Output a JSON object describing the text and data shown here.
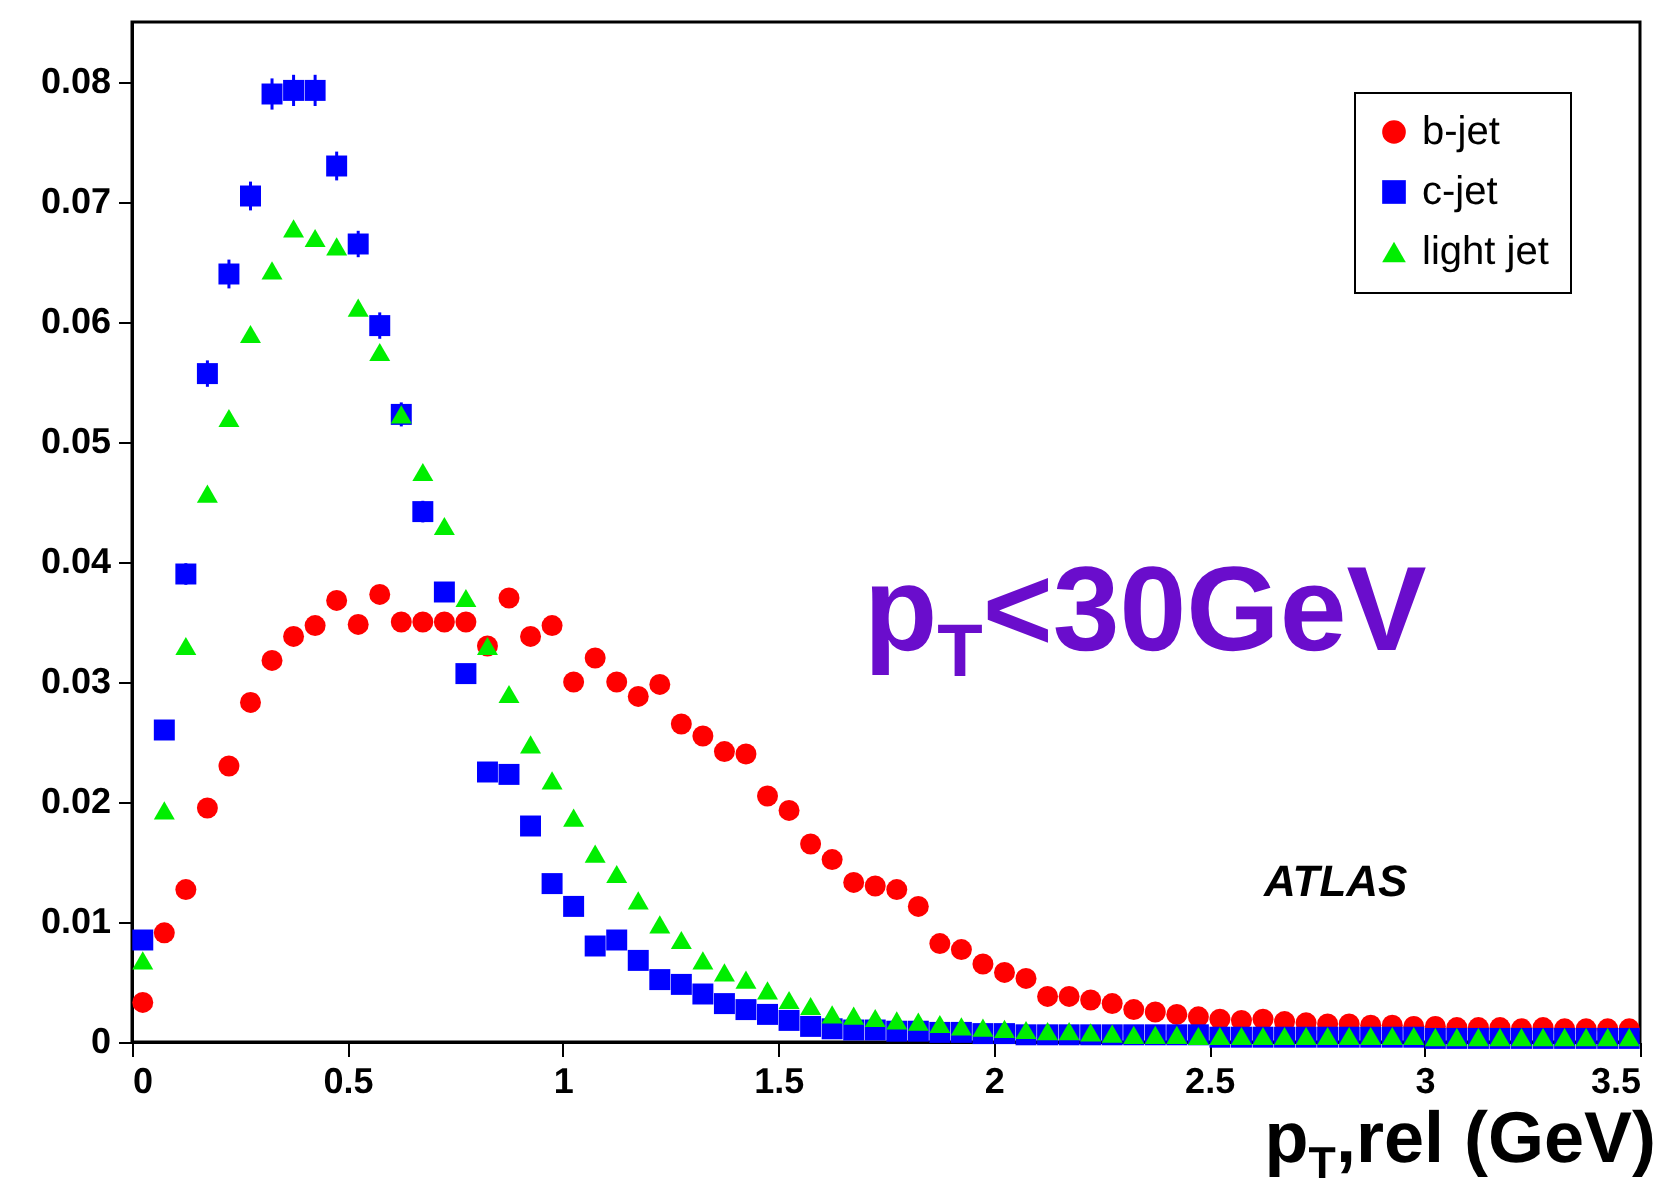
{
  "chart_data": {
    "type": "scatter",
    "xlabel": "p$_{T}$,rel (GeV)",
    "annotations": [
      "p$_{T}$<30GeV",
      "ATLAS"
    ],
    "x": [
      0.025,
      0.075,
      0.125,
      0.175,
      0.225,
      0.275,
      0.325,
      0.375,
      0.425,
      0.475,
      0.525,
      0.575,
      0.625,
      0.675,
      0.725,
      0.775,
      0.825,
      0.875,
      0.925,
      0.975,
      1.025,
      1.075,
      1.125,
      1.175,
      1.225,
      1.275,
      1.325,
      1.375,
      1.425,
      1.475,
      1.525,
      1.575,
      1.625,
      1.675,
      1.725,
      1.775,
      1.825,
      1.875,
      1.925,
      1.975,
      2.025,
      2.075,
      2.125,
      2.175,
      2.225,
      2.275,
      2.325,
      2.375,
      2.425,
      2.475,
      2.525,
      2.575,
      2.625,
      2.675,
      2.725,
      2.775,
      2.825,
      2.875,
      2.925,
      2.975,
      3.025,
      3.075,
      3.125,
      3.175,
      3.225,
      3.275,
      3.325,
      3.375,
      3.425,
      3.475
    ],
    "series": [
      {
        "name": "b-jet",
        "color": "#ff0000",
        "marker": "circle",
        "values": [
          0.0033,
          0.0091,
          0.0127,
          0.0195,
          0.023,
          0.0283,
          0.0318,
          0.0338,
          0.0347,
          0.0368,
          0.0348,
          0.0373,
          0.035,
          0.035,
          0.035,
          0.035,
          0.033,
          0.037,
          0.0338,
          0.0347,
          0.03,
          0.032,
          0.03,
          0.0288,
          0.0298,
          0.0265,
          0.0255,
          0.0242,
          0.024,
          0.0205,
          0.0193,
          0.0165,
          0.0152,
          0.0133,
          0.013,
          0.0127,
          0.0113,
          0.0082,
          0.0077,
          0.0065,
          0.0058,
          0.0053,
          0.0038,
          0.0038,
          0.0035,
          0.0032,
          0.0027,
          0.0025,
          0.0023,
          0.0021,
          0.0019,
          0.0018,
          0.0019,
          0.0017,
          0.0016,
          0.0015,
          0.0015,
          0.0014,
          0.0014,
          0.0013,
          0.0013,
          0.0012,
          0.0012,
          0.0012,
          0.0011,
          0.0012,
          0.0011,
          0.0011,
          0.0011,
          0.0011
        ]
      },
      {
        "name": "c-jet",
        "color": "#0000ff",
        "marker": "square",
        "values": [
          0.0085,
          0.026,
          0.039,
          0.0557,
          0.064,
          0.0705,
          0.079,
          0.0793,
          0.0793,
          0.073,
          0.0665,
          0.0597,
          0.0523,
          0.0442,
          0.0375,
          0.0307,
          0.0225,
          0.0223,
          0.018,
          0.0132,
          0.0113,
          0.008,
          0.0085,
          0.0068,
          0.0052,
          0.0048,
          0.004,
          0.0032,
          0.0027,
          0.0023,
          0.0018,
          0.0013,
          0.0011,
          0.001,
          0.001,
          0.0009,
          0.0009,
          0.0008,
          0.0008,
          0.0007,
          0.0007,
          0.0006,
          0.0006,
          0.0006,
          0.0006,
          0.0006,
          0.0006,
          0.0006,
          0.0006,
          0.0006,
          0.0004,
          0.0004,
          0.0004,
          0.0004,
          0.0004,
          0.0004,
          0.0004,
          0.0004,
          0.0004,
          0.0004,
          0.0003,
          0.0003,
          0.0003,
          0.0003,
          0.0003,
          0.0003,
          0.0003,
          0.0003,
          0.0003,
          0.0003
        ],
        "errors": [
          null,
          0.0008,
          0.0009,
          0.0011,
          0.0012,
          0.0012,
          0.0013,
          0.0013,
          0.0013,
          0.0012,
          0.0011,
          0.0011,
          0.001,
          0.0009,
          0.0008,
          null,
          null,
          null,
          null,
          null,
          null,
          null,
          null,
          null,
          null,
          null,
          null,
          null,
          null,
          null,
          null,
          null,
          null,
          null,
          null,
          null,
          null,
          null,
          null,
          null,
          null,
          null,
          null,
          null,
          null,
          null,
          null,
          null,
          null,
          null,
          null,
          null,
          null,
          null,
          null,
          null,
          null,
          null,
          null,
          null,
          null,
          null,
          null,
          null,
          null,
          null,
          null,
          null,
          null,
          null
        ]
      },
      {
        "name": "light jet",
        "color": "#00ee00",
        "marker": "triangle",
        "values": [
          0.0068,
          0.0193,
          0.033,
          0.0457,
          0.052,
          0.059,
          0.0643,
          0.0678,
          0.067,
          0.0663,
          0.0612,
          0.0575,
          0.0523,
          0.0475,
          0.043,
          0.037,
          0.033,
          0.029,
          0.0248,
          0.0218,
          0.0187,
          0.0157,
          0.014,
          0.0118,
          0.0098,
          0.0085,
          0.0068,
          0.0058,
          0.0052,
          0.0043,
          0.0035,
          0.003,
          0.0023,
          0.0022,
          0.002,
          0.0018,
          0.0017,
          0.0015,
          0.0013,
          0.0012,
          0.0011,
          0.001,
          0.0009,
          0.0009,
          0.0008,
          0.0007,
          0.0006,
          0.0006,
          0.0006,
          0.0005,
          0.0005,
          0.0005,
          0.0005,
          0.0005,
          0.0005,
          0.0005,
          0.0005,
          0.0005,
          0.0005,
          0.0005,
          0.0004,
          0.0004,
          0.0004,
          0.0004,
          0.0004,
          0.0004,
          0.0004,
          0.0004,
          0.0004,
          0.0004
        ]
      }
    ],
    "xlim": [
      0,
      3.5
    ],
    "xticks": [
      0,
      0.5,
      1,
      1.5,
      2,
      2.5,
      3,
      3.5
    ],
    "ylim": [
      0,
      0.085
    ],
    "yticks": [
      0,
      0.01,
      0.02,
      0.03,
      0.04,
      0.05,
      0.06,
      0.07,
      0.08
    ],
    "legend": "top right"
  }
}
